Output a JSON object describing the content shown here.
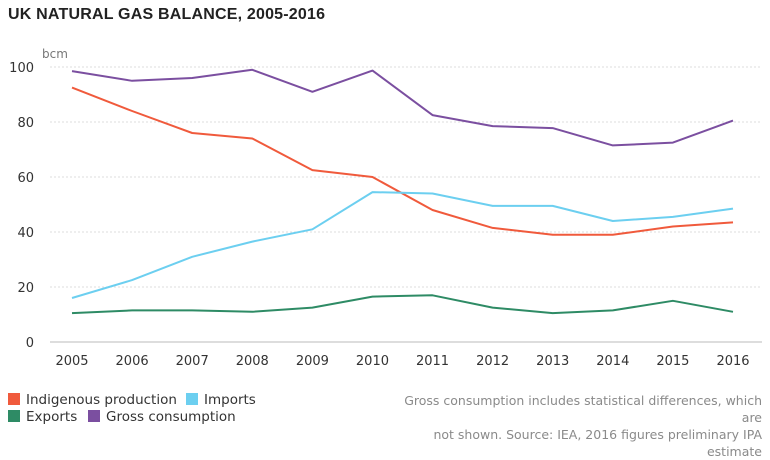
{
  "chart_data": {
    "type": "line",
    "title": "UK NATURAL GAS BALANCE, 2005-2016",
    "ylabel": "bcm",
    "xlabel": "",
    "ylim": [
      0,
      105
    ],
    "yticks": [
      0,
      20,
      40,
      60,
      80,
      100
    ],
    "grid": true,
    "categories": [
      "2005",
      "2006",
      "2007",
      "2008",
      "2009",
      "2010",
      "2011",
      "2012",
      "2013",
      "2014",
      "2015",
      "2016"
    ],
    "series": [
      {
        "name": "Indigenous production",
        "color": "#f05a3c",
        "values": [
          92.5,
          84,
          76,
          74,
          62.5,
          60,
          48,
          41.5,
          39,
          39,
          42,
          43.5
        ]
      },
      {
        "name": "Imports",
        "color": "#6ccff0",
        "values": [
          16,
          22.5,
          31,
          36.5,
          41,
          54.5,
          54,
          49.5,
          49.5,
          44,
          45.5,
          48.5
        ]
      },
      {
        "name": "Exports",
        "color": "#2e8b65",
        "values": [
          10.5,
          11.5,
          11.5,
          11,
          12.5,
          16.5,
          17,
          12.5,
          10.5,
          11.5,
          15,
          11
        ]
      },
      {
        "name": "Gross consumption",
        "color": "#7b4fa0",
        "values": [
          98.5,
          95,
          96,
          99,
          91,
          98.7,
          82.5,
          78.5,
          77.8,
          71.5,
          72.5,
          80.5
        ]
      }
    ],
    "note": "Gross consumption includes statistical differences, which are not shown. Source: IEA, 2016 figures preliminary IPA estimate"
  },
  "legend": {
    "items": [
      {
        "label": "Indigenous production",
        "color": "#f05a3c"
      },
      {
        "label": "Imports",
        "color": "#6ccff0"
      },
      {
        "label": "Exports",
        "color": "#2e8b65"
      },
      {
        "label": "Gross consumption",
        "color": "#7b4fa0"
      }
    ]
  },
  "footnote": {
    "line1": "Gross consumption includes statistical differences, which are",
    "line2": "not shown. Source: IEA, 2016 figures preliminary IPA estimate"
  }
}
